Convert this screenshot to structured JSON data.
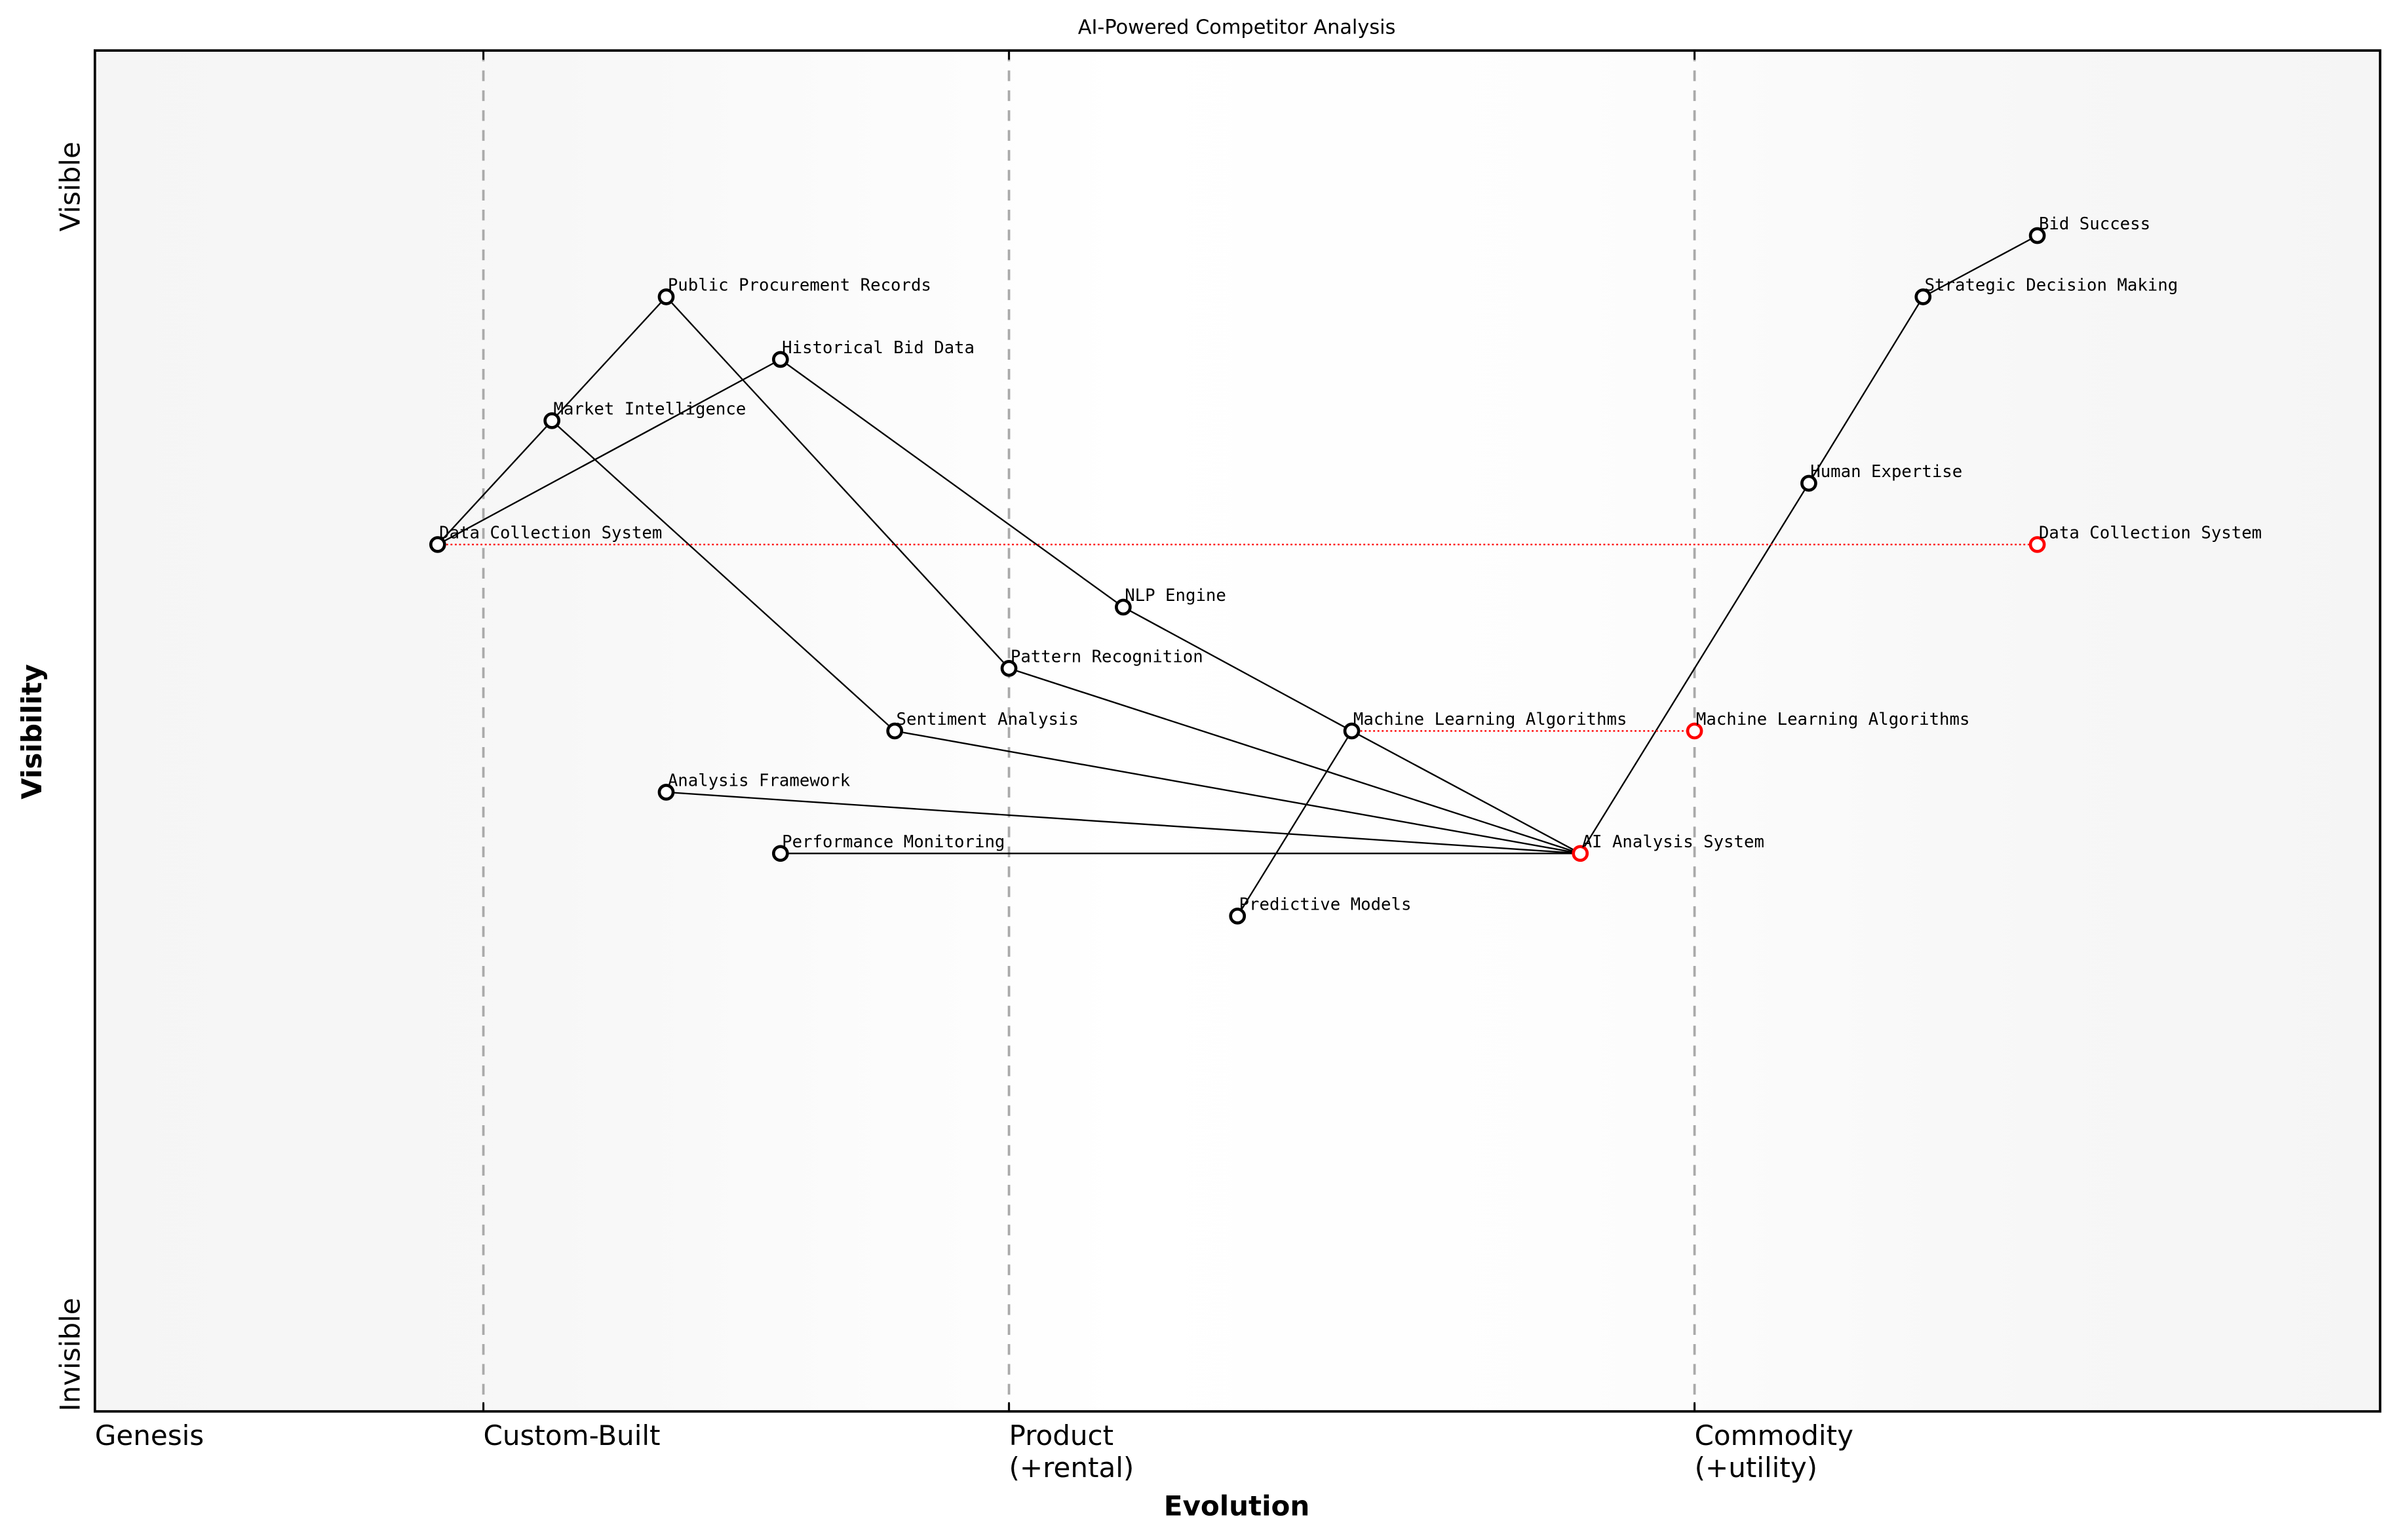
{
  "chart_data": {
    "type": "scatter",
    "subtype": "wardley-map",
    "title": "AI-Powered Competitor Analysis",
    "xlabel": "Evolution",
    "ylabel": "Visibility",
    "xlim": [
      0,
      1
    ],
    "ylim": [
      0,
      1
    ],
    "y_tick_labels": [
      {
        "label": "Visible",
        "y": 0.9
      },
      {
        "label": "Invisible",
        "y": 0.0
      }
    ],
    "x_tick_labels": [
      {
        "label": "Genesis",
        "x": 0.0
      },
      {
        "label": "Custom-Built",
        "x": 0.17
      },
      {
        "label": "Product\n(+rental)",
        "x": 0.4
      },
      {
        "label": "Commodity\n(+utility)",
        "x": 0.7
      }
    ],
    "stage_dividers": [
      0.17,
      0.4,
      0.7
    ],
    "grid": false,
    "legend": null,
    "components": [
      {
        "id": "bid_success",
        "name": "Bid Success",
        "x": 0.85,
        "y": 0.864,
        "color": "#000000"
      },
      {
        "id": "strategic_decision_making",
        "name": "Strategic Decision Making",
        "x": 0.8,
        "y": 0.819,
        "color": "#000000"
      },
      {
        "id": "human_expertise",
        "name": "Human Expertise",
        "x": 0.75,
        "y": 0.682,
        "color": "#000000"
      },
      {
        "id": "ai_analysis_system",
        "name": "AI Analysis System",
        "x": 0.65,
        "y": 0.41,
        "color": "#ff0000"
      },
      {
        "id": "machine_learning_algorithms",
        "name": "Machine Learning Algorithms",
        "x": 0.55,
        "y": 0.5,
        "color": "#000000"
      },
      {
        "id": "nlp_engine",
        "name": "NLP Engine",
        "x": 0.45,
        "y": 0.591,
        "color": "#000000"
      },
      {
        "id": "pattern_recognition",
        "name": "Pattern Recognition",
        "x": 0.4,
        "y": 0.546,
        "color": "#000000"
      },
      {
        "id": "sentiment_analysis",
        "name": "Sentiment Analysis",
        "x": 0.35,
        "y": 0.5,
        "color": "#000000"
      },
      {
        "id": "analysis_framework",
        "name": "Analysis Framework",
        "x": 0.25,
        "y": 0.455,
        "color": "#000000"
      },
      {
        "id": "performance_monitoring",
        "name": "Performance Monitoring",
        "x": 0.3,
        "y": 0.41,
        "color": "#000000"
      },
      {
        "id": "predictive_models",
        "name": "Predictive Models",
        "x": 0.5,
        "y": 0.364,
        "color": "#000000"
      },
      {
        "id": "public_procurement_records",
        "name": "Public Procurement Records",
        "x": 0.25,
        "y": 0.819,
        "color": "#000000"
      },
      {
        "id": "historical_bid_data",
        "name": "Historical Bid Data",
        "x": 0.3,
        "y": 0.773,
        "color": "#000000"
      },
      {
        "id": "market_intelligence",
        "name": "Market Intelligence",
        "x": 0.2,
        "y": 0.728,
        "color": "#000000"
      },
      {
        "id": "data_collection_system",
        "name": "Data Collection System",
        "x": 0.15,
        "y": 0.637,
        "color": "#000000"
      }
    ],
    "evolved_components": [
      {
        "id": "data_collection_system_evolved",
        "name": "Data Collection System",
        "from_x": 0.15,
        "x": 0.85,
        "y": 0.637,
        "color": "#ff0000"
      },
      {
        "id": "machine_learning_algorithms_evolved",
        "name": "Machine Learning Algorithms",
        "from_x": 0.55,
        "x": 0.7,
        "y": 0.5,
        "color": "#ff0000"
      }
    ],
    "links": [
      [
        "bid_success",
        "strategic_decision_making"
      ],
      [
        "strategic_decision_making",
        "human_expertise"
      ],
      [
        "human_expertise",
        "ai_analysis_system"
      ],
      [
        "ai_analysis_system",
        "machine_learning_algorithms"
      ],
      [
        "ai_analysis_system",
        "pattern_recognition"
      ],
      [
        "ai_analysis_system",
        "sentiment_analysis"
      ],
      [
        "ai_analysis_system",
        "analysis_framework"
      ],
      [
        "ai_analysis_system",
        "performance_monitoring"
      ],
      [
        "machine_learning_algorithms",
        "nlp_engine"
      ],
      [
        "machine_learning_algorithms",
        "predictive_models"
      ],
      [
        "nlp_engine",
        "historical_bid_data"
      ],
      [
        "pattern_recognition",
        "public_procurement_records"
      ],
      [
        "sentiment_analysis",
        "market_intelligence"
      ],
      [
        "public_procurement_records",
        "market_intelligence"
      ],
      [
        "market_intelligence",
        "data_collection_system"
      ],
      [
        "historical_bid_data",
        "data_collection_system"
      ]
    ],
    "colors": {
      "node_stroke": "#000000",
      "evolved_stroke": "#ff0000",
      "stage_divider": "#aaaaaa",
      "background_edge": "#f5f5f5",
      "background_center": "#ffffff"
    }
  }
}
